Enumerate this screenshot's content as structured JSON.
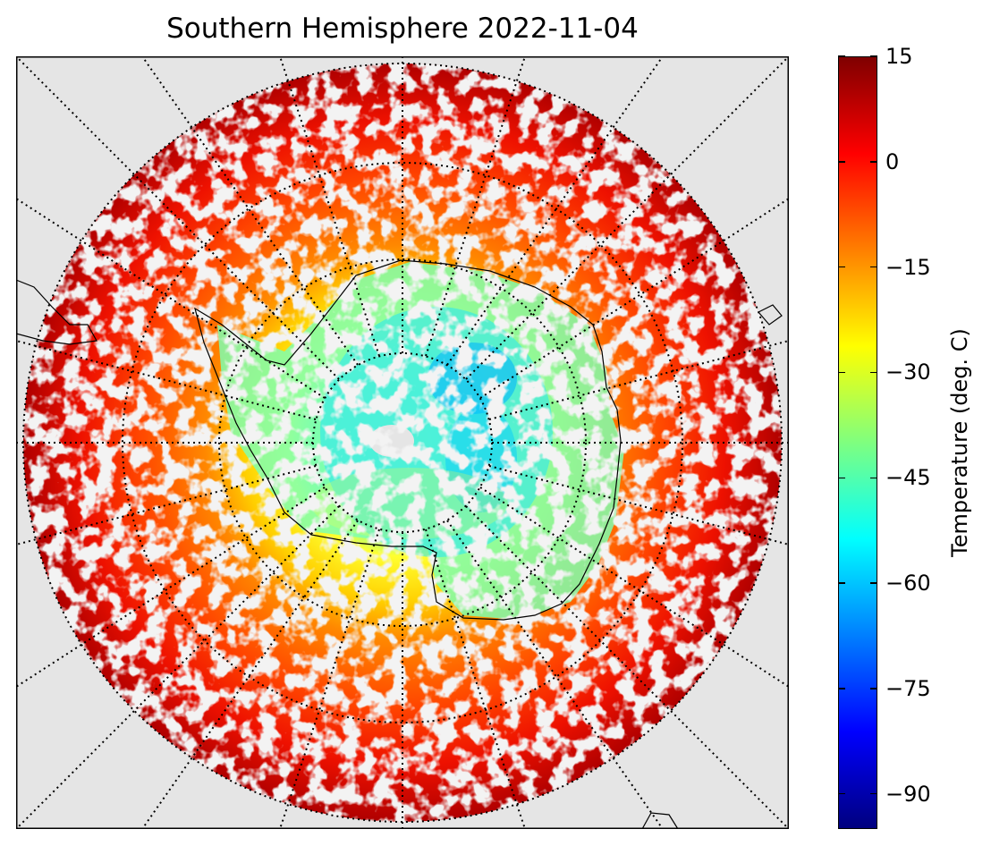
{
  "title": "Southern Hemisphere 2022-11-04",
  "map": {
    "projection": "south polar stereographic",
    "graticule": "dotted",
    "land_outline": "Antarctica and southern continents",
    "background_color": "#e5e5e5"
  },
  "colorbar": {
    "label": "Temperature (deg. C)",
    "min": -95,
    "max": 15,
    "ticks": [
      "15",
      "0",
      "−15",
      "−30",
      "−45",
      "−60",
      "−75",
      "−90"
    ],
    "tick_values": [
      15,
      0,
      -15,
      -30,
      -45,
      -60,
      -75,
      -90
    ],
    "colormap": "jet",
    "colors": [
      "#00007f",
      "#0000ff",
      "#007fff",
      "#00ffff",
      "#7fff7f",
      "#ffff00",
      "#ff7f00",
      "#ff0000",
      "#7f0000"
    ]
  }
}
